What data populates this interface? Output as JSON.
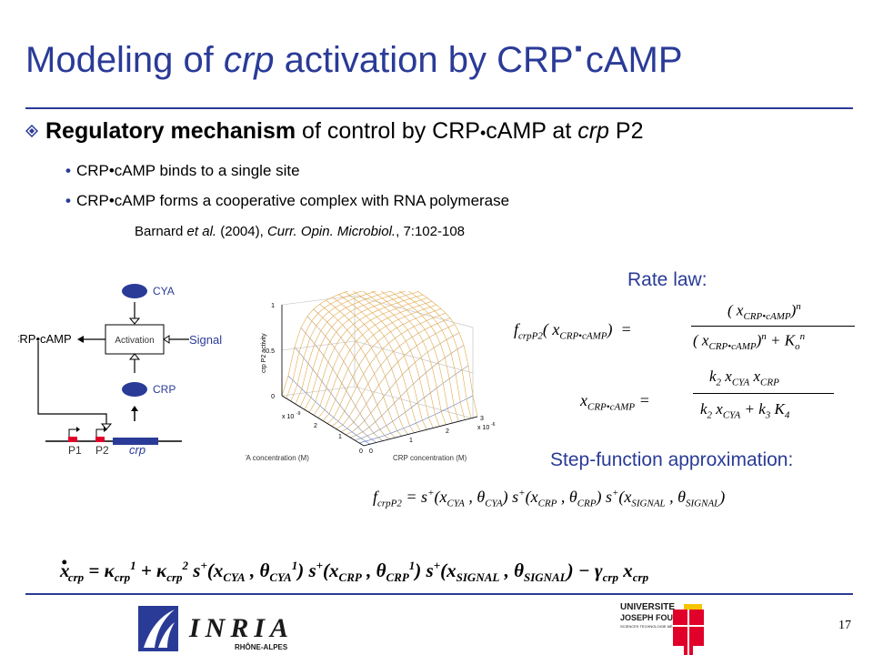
{
  "slide": {
    "title_pre": "Modeling of ",
    "title_italic": "crp",
    "title_post": " activation by CRP",
    "title_dot": "·",
    "title_end": "cAMP",
    "heading_bold": "Regulatory mechanism",
    "heading_mid": " of  control by CRP",
    "heading_dot": "•",
    "heading_post": "cAMP at ",
    "heading_italic": "crp",
    "heading_end": " P2",
    "bullets": [
      "CRP•cAMP binds to a single site",
      "CRP•cAMP forms a cooperative complex with RNA polymerase"
    ],
    "reference": {
      "author": "Barnard ",
      "etal": "et al.",
      "year": " (2004), ",
      "journal": "Curr. Opin. Microbiol.",
      "vol": ", 7:102-108"
    },
    "page_number": "17"
  },
  "diagram": {
    "cya": "CYA",
    "crp": "CRP",
    "complex": "CRP•cAMP",
    "box": "Activation",
    "signal": "Signal",
    "p1": "P1",
    "p2": "P2",
    "gene": "crp"
  },
  "plot": {
    "zlabel": "crp P2 activity",
    "xlabel": "CYA  concentration (M)",
    "ylabel": "CRP  concentration (M)",
    "z_ticks": [
      "0",
      "0.5",
      "1"
    ],
    "cya_ticks": [
      "0",
      "1",
      "2",
      "x 10"
    ],
    "cya_exp": "-9",
    "crp_ticks": [
      "0",
      "1",
      "2",
      "3",
      "x 10"
    ],
    "crp_exp": "-6"
  },
  "labels": {
    "rate_law": "Rate law:",
    "step": "Step-function approximation:"
  },
  "logos": {
    "inria": "INRIA",
    "inria_sub": "RHÔNE-ALPES",
    "ujf1": "UNIVERSITE",
    "ujf2": "JOSEPH FOURIER",
    "ujf3": "SCIENCES TECHNOLOGIE MÉDECINE"
  },
  "colors": {
    "accent": "#2a3b97",
    "red": "#e0002a",
    "yellow": "#f5c400"
  }
}
